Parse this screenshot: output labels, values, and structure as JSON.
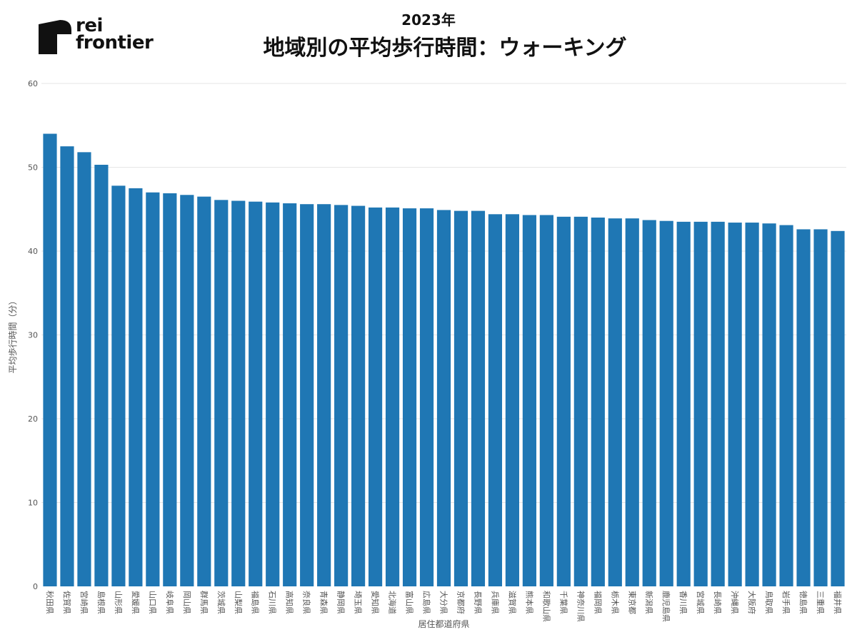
{
  "brand": {
    "line1": "rei",
    "line2": "frontier"
  },
  "colors": {
    "bar": "#1f77b4",
    "grid": "#e6e6e6"
  },
  "chart_data": {
    "type": "bar",
    "title": "地域別の平均歩行時間：ウォーキング",
    "subtitle": "2023年",
    "xlabel": "居住都道府県",
    "ylabel": "平均歩行時間（分）",
    "ylim": [
      0,
      60
    ],
    "yticks": [
      0,
      10,
      20,
      30,
      40,
      50,
      60
    ],
    "grid": true,
    "categories": [
      "秋田県",
      "佐賀県",
      "宮崎県",
      "島根県",
      "山形県",
      "愛媛県",
      "山口県",
      "岐阜県",
      "岡山県",
      "群馬県",
      "茨城県",
      "山梨県",
      "福島県",
      "石川県",
      "高知県",
      "奈良県",
      "青森県",
      "静岡県",
      "埼玉県",
      "愛知県",
      "北海道",
      "富山県",
      "広島県",
      "大分県",
      "京都府",
      "長野県",
      "兵庫県",
      "滋賀県",
      "熊本県",
      "和歌山県",
      "千葉県",
      "神奈川県",
      "福岡県",
      "栃木県",
      "東京都",
      "新潟県",
      "鹿児島県",
      "香川県",
      "宮城県",
      "長崎県",
      "沖縄県",
      "大阪府",
      "鳥取県",
      "岩手県",
      "徳島県",
      "三重県",
      "福井県"
    ],
    "values": [
      54.0,
      52.5,
      51.8,
      50.3,
      47.8,
      47.5,
      47.0,
      46.9,
      46.7,
      46.5,
      46.1,
      46.0,
      45.9,
      45.8,
      45.7,
      45.6,
      45.6,
      45.5,
      45.4,
      45.2,
      45.2,
      45.1,
      45.1,
      44.9,
      44.8,
      44.8,
      44.4,
      44.4,
      44.3,
      44.3,
      44.1,
      44.1,
      44.0,
      43.9,
      43.9,
      43.7,
      43.6,
      43.5,
      43.5,
      43.5,
      43.4,
      43.4,
      43.3,
      43.1,
      42.6,
      42.6,
      42.4
    ]
  }
}
